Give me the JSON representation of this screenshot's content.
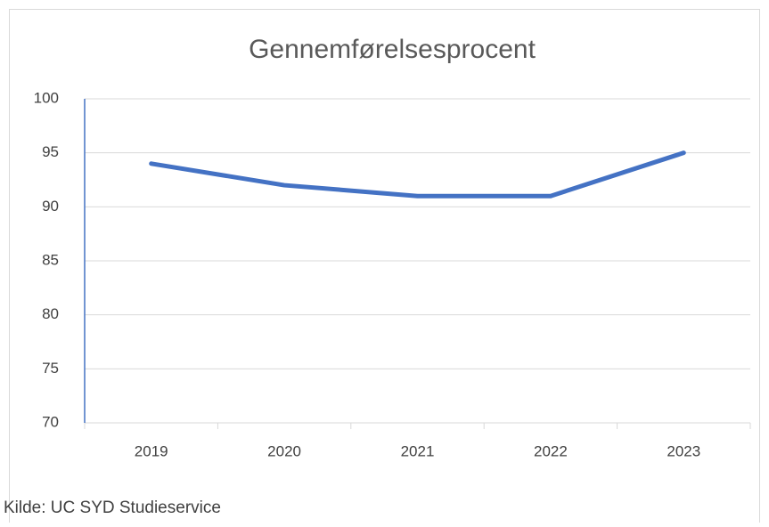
{
  "chart_data": {
    "type": "line",
    "title": "Gennemførelsesprocent",
    "categories": [
      "2019",
      "2020",
      "2021",
      "2022",
      "2023"
    ],
    "series": [
      {
        "name": "Gennemførelsesprocent",
        "color": "#4472c4",
        "values": [
          94,
          92,
          91,
          91,
          95
        ]
      }
    ],
    "ylim": [
      70,
      100
    ],
    "yticks": [
      70,
      75,
      80,
      85,
      90,
      95,
      100
    ],
    "grid": true,
    "source": "Kilde: UC SYD Studieservice"
  }
}
